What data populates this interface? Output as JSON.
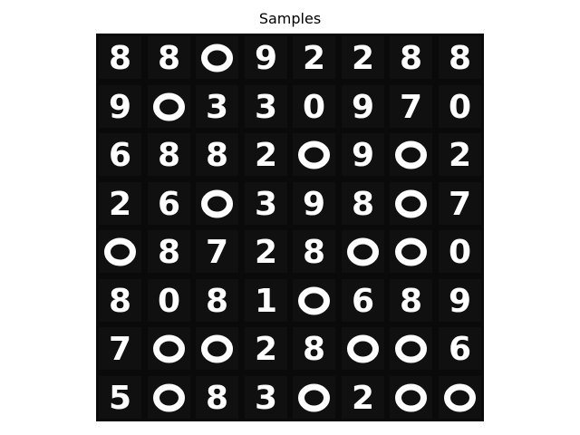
{
  "title": "Samples",
  "grid": {
    "rows": 8,
    "cols": 8,
    "digits": [
      [
        "8",
        "8",
        "",
        "9",
        "2",
        "2",
        "8",
        "8"
      ],
      [
        "9",
        "",
        "3",
        "3",
        "0",
        "9",
        "7",
        "0"
      ],
      [
        "6",
        "8",
        "8",
        "2",
        "",
        "9",
        "",
        "2"
      ],
      [
        "2",
        "6",
        "",
        "3",
        "9",
        "8",
        "",
        "7"
      ],
      [
        "",
        "8",
        "7",
        "2",
        "8",
        "",
        "",
        "0"
      ],
      [
        "8",
        "0",
        "8",
        "1",
        "",
        "6",
        "8",
        "9"
      ],
      [
        "7",
        "",
        "",
        "2",
        "8",
        "",
        "",
        "6"
      ],
      [
        "5",
        "",
        "8",
        "3",
        "",
        "2",
        "",
        ""
      ]
    ]
  },
  "colors": {
    "background": "#000000",
    "digit": "#ffffff"
  }
}
